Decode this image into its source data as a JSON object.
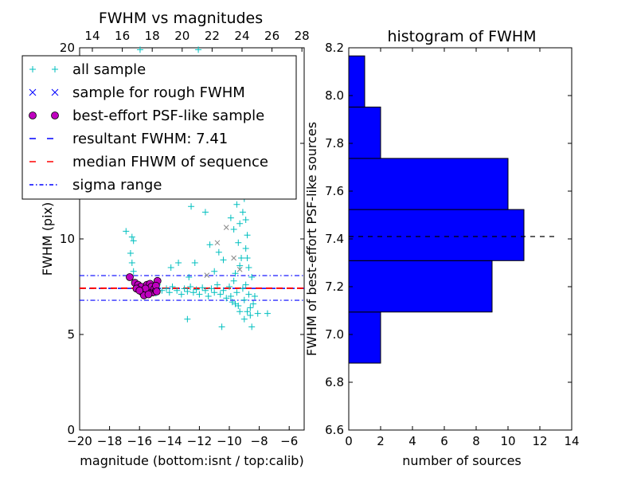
{
  "chart_data": [
    {
      "type": "scatter",
      "title": "FWHM vs magnitudes",
      "xlabel": "magnitude (bottom:isnt / top:calib)",
      "ylabel": "FWHM (pix)",
      "xlim": [
        -20,
        -5
      ],
      "ylim": [
        0,
        20
      ],
      "xticks": [
        "−20",
        "−18",
        "−16",
        "−14",
        "−12",
        "−10",
        "−8",
        "−6"
      ],
      "xtick_values": [
        -20,
        -18,
        -16,
        -14,
        -12,
        -10,
        -8,
        -6
      ],
      "yticks": [
        "0",
        "5",
        "10",
        "15",
        "20"
      ],
      "ytick_values": [
        0,
        5,
        10,
        15,
        20
      ],
      "top_xticks": [
        "14",
        "16",
        "18",
        "20",
        "22",
        "24",
        "26",
        "28"
      ],
      "top_xtick_values": [
        14,
        16,
        18,
        20,
        22,
        24,
        26,
        28
      ],
      "top_xlim": [
        13.15,
        28.15
      ],
      "legend_placement": "upper-left",
      "legend": [
        {
          "label": "all sample",
          "marker": "+",
          "color": "#00bfbf"
        },
        {
          "label": "sample for rough FWHM",
          "marker": "x",
          "color": "#0000ff"
        },
        {
          "label": "best-effort PSF-like sample",
          "marker": "o",
          "color": "#bf00bf"
        },
        {
          "label": "resultant FWHM: 7.41",
          "style": "dashed",
          "color": "#0000ff"
        },
        {
          "label": "median FHWM of sequence",
          "style": "dashed",
          "color": "#ff0000"
        },
        {
          "label": "sigma range",
          "style": "dashdot",
          "color": "#0000ff"
        }
      ],
      "hlines": {
        "resultant": 7.41,
        "median": 7.42,
        "sigma_low": 6.79,
        "sigma_high": 8.08
      },
      "series": [
        {
          "name": "all sample",
          "points": [
            [
              -15.96,
              19.9
            ],
            [
              -12.07,
              19.9
            ],
            [
              -16.9,
              10.4
            ],
            [
              -16.5,
              10.1
            ],
            [
              -16.4,
              9.9
            ],
            [
              -16.6,
              9.25
            ],
            [
              -16.5,
              8.75
            ],
            [
              -16.4,
              8.3
            ],
            [
              -12.55,
              11.7
            ],
            [
              -11.6,
              11.4
            ],
            [
              -12.3,
              8.75
            ],
            [
              -12.8,
              5.8
            ],
            [
              -10.5,
              5.4
            ],
            [
              -8.5,
              5.4
            ],
            [
              -8.1,
              6.1
            ],
            [
              -7.45,
              6.1
            ],
            [
              -13.9,
              8.5
            ],
            [
              -13.4,
              8.75
            ],
            [
              -14.8,
              7.6
            ],
            [
              -14.5,
              7.3
            ],
            [
              -14.2,
              7.4
            ],
            [
              -14.0,
              7.2
            ],
            [
              -13.8,
              7.5
            ],
            [
              -13.5,
              7.3
            ],
            [
              -13.2,
              7.1
            ],
            [
              -13.0,
              7.4
            ],
            [
              -12.8,
              7.25
            ],
            [
              -12.6,
              7.5
            ],
            [
              -12.4,
              7.2
            ],
            [
              -12.2,
              7.35
            ],
            [
              -12.0,
              7.1
            ],
            [
              -11.8,
              7.45
            ],
            [
              -11.6,
              7.3
            ],
            [
              -11.4,
              7.0
            ],
            [
              -11.2,
              7.4
            ],
            [
              -11.0,
              7.2
            ],
            [
              -10.8,
              7.6
            ],
            [
              -10.6,
              7.1
            ],
            [
              -10.4,
              7.3
            ],
            [
              -10.2,
              6.9
            ],
            [
              -10.0,
              7.5
            ],
            [
              -9.9,
              7.0
            ],
            [
              -9.8,
              6.7
            ],
            [
              -9.7,
              7.8
            ],
            [
              -9.6,
              8.2
            ],
            [
              -9.5,
              7.2
            ],
            [
              -9.4,
              6.5
            ],
            [
              -9.3,
              8.6
            ],
            [
              -9.2,
              9.0
            ],
            [
              -9.1,
              7.4
            ],
            [
              -9.0,
              6.8
            ],
            [
              -8.9,
              9.5
            ],
            [
              -8.8,
              10.2
            ],
            [
              -8.7,
              7.1
            ],
            [
              -8.6,
              6.4
            ],
            [
              -8.5,
              8.0
            ],
            [
              -9.3,
              10.8
            ],
            [
              -9.1,
              11.4
            ],
            [
              -9.0,
              12.1
            ],
            [
              -9.2,
              12.8
            ],
            [
              -9.4,
              13.5
            ],
            [
              -9.6,
              14.2
            ],
            [
              -9.8,
              15.0
            ],
            [
              -10.0,
              16.5
            ],
            [
              -10.3,
              18.0
            ],
            [
              -9.9,
              19.2
            ],
            [
              -10.5,
              17.2
            ],
            [
              -9.5,
              13.0
            ],
            [
              -8.9,
              11.0
            ],
            [
              -8.8,
              9.0
            ],
            [
              -8.7,
              8.5
            ],
            [
              -8.6,
              6.0
            ],
            [
              -9.0,
              5.8
            ],
            [
              -8.8,
              6.2
            ],
            [
              -8.4,
              6.6
            ],
            [
              -8.3,
              7.0
            ],
            [
              -10.7,
              9.3
            ],
            [
              -11.0,
              8.3
            ],
            [
              -10.2,
              12.3
            ],
            [
              -10.9,
              13.0
            ],
            [
              -9.7,
              10.5
            ],
            [
              -9.5,
              11.8
            ],
            [
              -9.2,
              14.8
            ],
            [
              -10.6,
              15.4
            ],
            [
              -10.1,
              14.0
            ],
            [
              -15.2,
              7.5
            ],
            [
              -15.6,
              7.3
            ],
            [
              -14.9,
              7.15
            ],
            [
              -9.3,
              6.2
            ],
            [
              -9.6,
              6.6
            ],
            [
              -8.9,
              7.6
            ],
            [
              -9.4,
              9.8
            ],
            [
              -10.4,
              8.9
            ],
            [
              -12.7,
              8.0
            ],
            [
              -11.3,
              9.7
            ],
            [
              -9.9,
              11.1
            ]
          ]
        },
        {
          "name": "sample for rough FWHM",
          "points": [
            [
              -10.8,
              9.8
            ],
            [
              -10.2,
              10.6
            ],
            [
              -9.7,
              9.0
            ],
            [
              -9.3,
              8.4
            ],
            [
              -11.5,
              8.1
            ],
            [
              -10.0,
              12.6
            ]
          ]
        },
        {
          "name": "best-effort PSF-like sample",
          "points": [
            [
              -16.65,
              8.0
            ],
            [
              -16.3,
              7.7
            ],
            [
              -16.1,
              7.6
            ],
            [
              -15.9,
              7.5
            ],
            [
              -16.2,
              7.4
            ],
            [
              -15.8,
              7.2
            ],
            [
              -15.7,
              7.05
            ],
            [
              -15.5,
              7.6
            ],
            [
              -15.4,
              7.35
            ],
            [
              -15.3,
              7.65
            ],
            [
              -15.2,
              7.5
            ],
            [
              -15.1,
              7.2
            ],
            [
              -15.0,
              7.4
            ],
            [
              -14.9,
              7.3
            ],
            [
              -14.8,
              7.8
            ],
            [
              -14.9,
              7.55
            ],
            [
              -15.6,
              7.4
            ],
            [
              -16.0,
              7.3
            ],
            [
              -15.4,
              7.1
            ],
            [
              -14.85,
              7.25
            ]
          ]
        }
      ]
    },
    {
      "type": "bar",
      "orientation": "horizontal",
      "title": "histogram of FWHM",
      "xlabel": "number of sources",
      "ylabel": "FWHM of best-effort PSF-like sources",
      "xlim": [
        0,
        14
      ],
      "ylim": [
        6.6,
        8.2
      ],
      "xticks": [
        "0",
        "2",
        "4",
        "6",
        "8",
        "10",
        "12",
        "14"
      ],
      "xtick_values": [
        0,
        2,
        4,
        6,
        8,
        10,
        12,
        14
      ],
      "yticks": [
        "6.6",
        "6.8",
        "7.0",
        "7.2",
        "7.4",
        "7.6",
        "7.8",
        "8.0",
        "8.2"
      ],
      "ytick_values": [
        6.6,
        6.8,
        7.0,
        7.2,
        7.4,
        7.6,
        7.8,
        8.0,
        8.2
      ],
      "bin_edges": [
        6.88,
        7.094,
        7.309,
        7.523,
        7.737,
        7.952,
        8.166
      ],
      "values": [
        2,
        9,
        11,
        10,
        2,
        1
      ],
      "bar_color": "#0000ff",
      "hline": 7.41
    }
  ]
}
